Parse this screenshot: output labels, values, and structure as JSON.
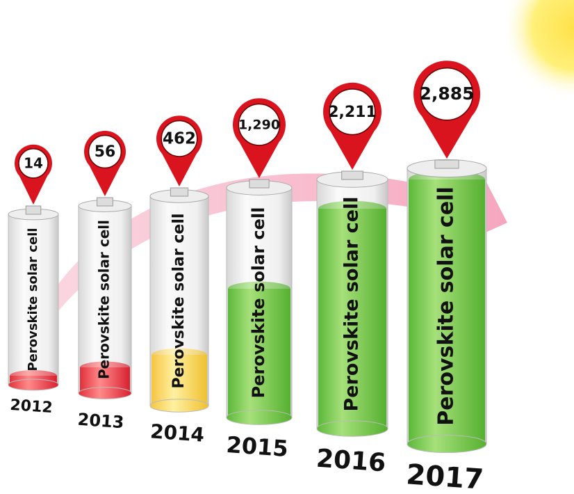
{
  "items": [
    {
      "count": "14",
      "cell": "Perovskite solar cell",
      "year": "2012"
    },
    {
      "count": "56",
      "cell": "Perovskite solar cell",
      "year": "2013"
    },
    {
      "count": "462",
      "cell": "Perovskite solar cell",
      "year": "2014"
    },
    {
      "count": "1,290",
      "cell": "Perovskite solar cell",
      "year": "2015"
    },
    {
      "count": "2,211",
      "cell": "Perovskite solar cell",
      "year": "2016"
    },
    {
      "count": "2,885",
      "cell": "Perovskite solar cell",
      "year": "2017"
    }
  ]
}
